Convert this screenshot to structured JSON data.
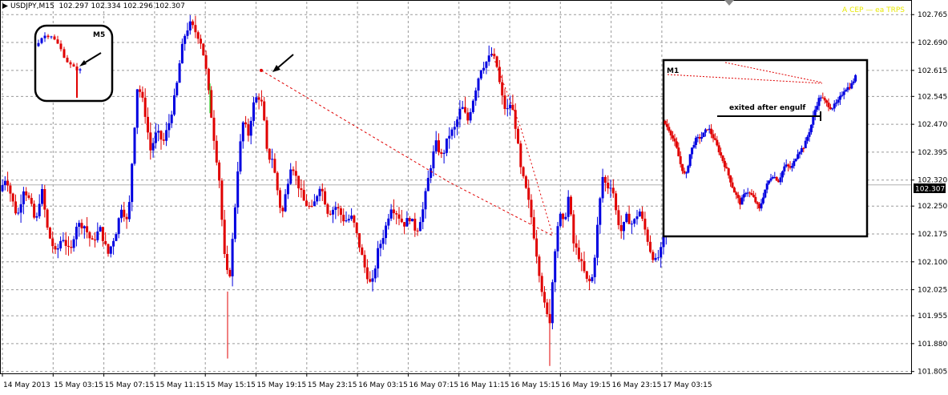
{
  "header": {
    "symbol_timeframe": "USDJPY,M15",
    "ohlc": "102.297 102.334 102.296 102.307"
  },
  "expert_label": "A CEP — ea TRPS",
  "current_price_label": "102.307",
  "colors": {
    "bull": "#0000e0",
    "bear": "#e00000",
    "neutral": "#00cc00",
    "grid": "#9a9a9a",
    "price_line": "#b0b0b0",
    "trendline": "#e00000",
    "background": "#ffffff"
  },
  "annotations": {
    "m5_inset_label": "M5",
    "m1_inset_label": "M1",
    "m1_note": "exited after engulf"
  },
  "chart_data": {
    "type": "candlestick",
    "title": "USDJPY,M15",
    "ylim": [
      101.8,
      102.8
    ],
    "y_ticks": [
      "102.765",
      "102.690",
      "102.615",
      "102.545",
      "102.470",
      "102.395",
      "102.320",
      "102.250",
      "102.175",
      "102.100",
      "102.025",
      "101.955",
      "101.880",
      "101.805"
    ],
    "x_ticks": [
      "14 May 2013",
      "15 May 03:15",
      "15 May 07:15",
      "15 May 11:15",
      "15 May 15:15",
      "15 May 19:15",
      "15 May 23:15",
      "16 May 03:15",
      "16 May 07:15",
      "16 May 11:15",
      "16 May 15:15",
      "16 May 19:15",
      "16 May 23:15",
      "17 May 03:15"
    ],
    "last_price": 102.307,
    "price_path": [
      [
        0,
        102.29
      ],
      [
        8,
        102.33
      ],
      [
        15,
        102.27
      ],
      [
        22,
        102.22
      ],
      [
        30,
        102.3
      ],
      [
        38,
        102.26
      ],
      [
        45,
        102.2
      ],
      [
        52,
        102.3
      ],
      [
        60,
        102.18
      ],
      [
        70,
        102.12
      ],
      [
        78,
        102.17
      ],
      [
        88,
        102.12
      ],
      [
        95,
        102.2
      ],
      [
        105,
        102.2
      ],
      [
        115,
        102.15
      ],
      [
        125,
        102.19
      ],
      [
        135,
        102.12
      ],
      [
        145,
        102.18
      ],
      [
        152,
        102.25
      ],
      [
        160,
        102.2
      ],
      [
        166,
        102.4
      ],
      [
        172,
        102.58
      ],
      [
        180,
        102.52
      ],
      [
        188,
        102.4
      ],
      [
        196,
        102.45
      ],
      [
        204,
        102.42
      ],
      [
        212,
        102.48
      ],
      [
        220,
        102.56
      ],
      [
        226,
        102.66
      ],
      [
        232,
        102.72
      ],
      [
        238,
        102.74
      ],
      [
        244,
        102.72
      ],
      [
        250,
        102.7
      ],
      [
        256,
        102.64
      ],
      [
        262,
        102.53
      ],
      [
        268,
        102.42
      ],
      [
        274,
        102.32
      ],
      [
        280,
        102.12
      ],
      [
        286,
        102.04
      ],
      [
        292,
        102.2
      ],
      [
        298,
        102.38
      ],
      [
        304,
        102.48
      ],
      [
        310,
        102.44
      ],
      [
        316,
        102.52
      ],
      [
        322,
        102.55
      ],
      [
        328,
        102.52
      ],
      [
        334,
        102.38
      ],
      [
        340,
        102.38
      ],
      [
        346,
        102.3
      ],
      [
        352,
        102.22
      ],
      [
        358,
        102.3
      ],
      [
        364,
        102.37
      ],
      [
        372,
        102.31
      ],
      [
        380,
        102.26
      ],
      [
        390,
        102.24
      ],
      [
        400,
        102.31
      ],
      [
        410,
        102.23
      ],
      [
        420,
        102.25
      ],
      [
        430,
        102.21
      ],
      [
        440,
        102.22
      ],
      [
        448,
        102.15
      ],
      [
        456,
        102.08
      ],
      [
        464,
        102.03
      ],
      [
        472,
        102.13
      ],
      [
        480,
        102.18
      ],
      [
        488,
        102.25
      ],
      [
        496,
        102.23
      ],
      [
        504,
        102.2
      ],
      [
        512,
        102.22
      ],
      [
        520,
        102.18
      ],
      [
        528,
        102.24
      ],
      [
        536,
        102.34
      ],
      [
        544,
        102.42
      ],
      [
        552,
        102.38
      ],
      [
        560,
        102.44
      ],
      [
        568,
        102.46
      ],
      [
        576,
        102.52
      ],
      [
        584,
        102.48
      ],
      [
        592,
        102.55
      ],
      [
        600,
        102.62
      ],
      [
        608,
        102.64
      ],
      [
        614,
        102.66
      ],
      [
        620,
        102.63
      ],
      [
        626,
        102.55
      ],
      [
        632,
        102.5
      ],
      [
        638,
        102.53
      ],
      [
        644,
        102.46
      ],
      [
        650,
        102.35
      ],
      [
        656,
        102.3
      ],
      [
        662,
        102.24
      ],
      [
        668,
        102.15
      ],
      [
        674,
        102.06
      ],
      [
        680,
        101.98
      ],
      [
        686,
        101.93
      ],
      [
        692,
        102.12
      ],
      [
        698,
        102.23
      ],
      [
        704,
        102.2
      ],
      [
        710,
        102.28
      ],
      [
        716,
        102.15
      ],
      [
        722,
        102.12
      ],
      [
        728,
        102.08
      ],
      [
        734,
        102.04
      ],
      [
        740,
        102.06
      ],
      [
        746,
        102.2
      ],
      [
        752,
        102.33
      ],
      [
        758,
        102.3
      ],
      [
        764,
        102.31
      ],
      [
        770,
        102.22
      ],
      [
        776,
        102.18
      ],
      [
        782,
        102.22
      ],
      [
        790,
        102.2
      ],
      [
        798,
        102.24
      ],
      [
        806,
        102.18
      ],
      [
        812,
        102.13
      ],
      [
        818,
        102.1
      ],
      [
        824,
        102.12
      ],
      [
        830,
        102.18
      ],
      [
        835,
        102.21
      ]
    ],
    "insets": [
      {
        "label": "M5",
        "price_path": [
          [
            0,
            102.7
          ],
          [
            10,
            102.73
          ],
          [
            20,
            102.73
          ],
          [
            30,
            102.7
          ],
          [
            38,
            102.66
          ],
          [
            46,
            102.64
          ],
          [
            54,
            102.63
          ]
        ]
      },
      {
        "label": "M1",
        "price_path": [
          [
            0,
            102.52
          ],
          [
            8,
            102.49
          ],
          [
            16,
            102.44
          ],
          [
            22,
            102.38
          ],
          [
            28,
            102.34
          ],
          [
            34,
            102.42
          ],
          [
            40,
            102.46
          ],
          [
            48,
            102.47
          ],
          [
            56,
            102.5
          ],
          [
            64,
            102.46
          ],
          [
            72,
            102.41
          ],
          [
            80,
            102.36
          ],
          [
            88,
            102.3
          ],
          [
            96,
            102.26
          ],
          [
            104,
            102.3
          ],
          [
            112,
            102.28
          ],
          [
            120,
            102.24
          ],
          [
            128,
            102.31
          ],
          [
            136,
            102.35
          ],
          [
            144,
            102.33
          ],
          [
            152,
            102.38
          ],
          [
            160,
            102.37
          ],
          [
            168,
            102.42
          ],
          [
            176,
            102.44
          ],
          [
            184,
            102.5
          ],
          [
            190,
            102.56
          ],
          [
            196,
            102.6
          ],
          [
            202,
            102.58
          ],
          [
            210,
            102.56
          ],
          [
            218,
            102.58
          ],
          [
            226,
            102.62
          ],
          [
            234,
            102.63
          ],
          [
            240,
            102.66
          ]
        ]
      }
    ]
  }
}
